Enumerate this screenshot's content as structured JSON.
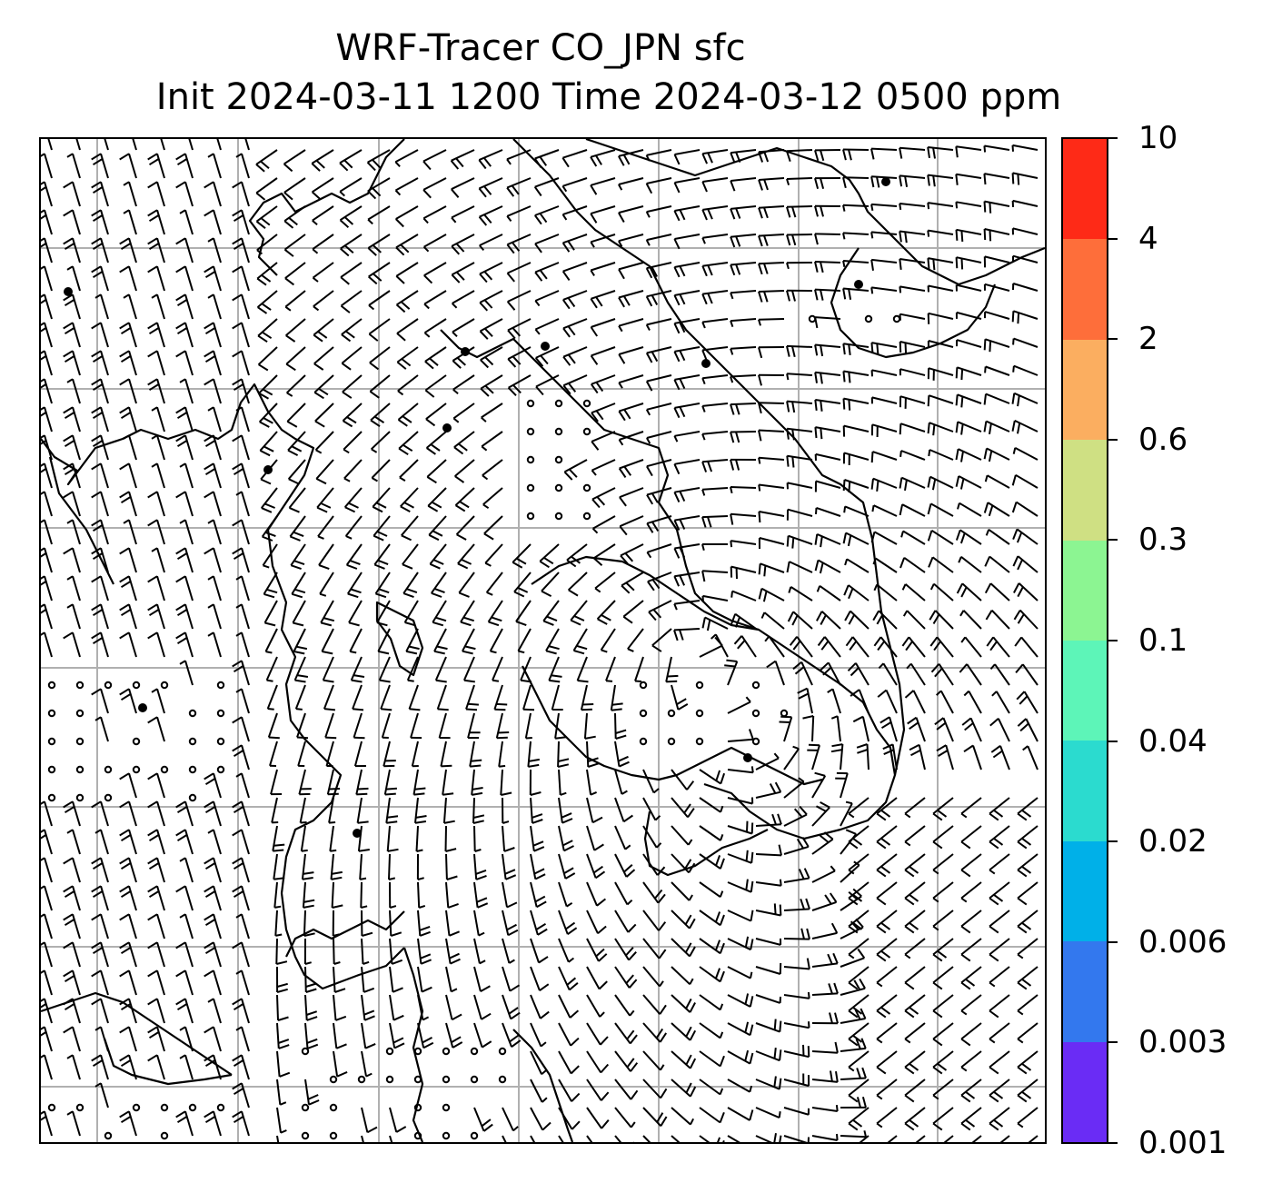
{
  "title": {
    "line1": "WRF-Tracer CO_JPN sfc",
    "line2": "Init 2024-03-11 1200 Time 2024-03-12 0500 ppm"
  },
  "colorbar": {
    "levels": [
      "0.001",
      "0.003",
      "0.006",
      "0.02",
      "0.04",
      "0.1",
      "0.3",
      "0.6",
      "2",
      "4",
      "10"
    ],
    "colors": [
      "#6a2cf5",
      "#3378ee",
      "#00b0e8",
      "#2bdbcf",
      "#5df5b8",
      "#8cf592",
      "#cfe083",
      "#fbae60",
      "#fe6e3a",
      "#fe2a17"
    ]
  },
  "map": {
    "gridlines": true,
    "gridline_color": "#b0b0b0",
    "coastline_color": "#000000",
    "barb_color": "#000000"
  }
}
